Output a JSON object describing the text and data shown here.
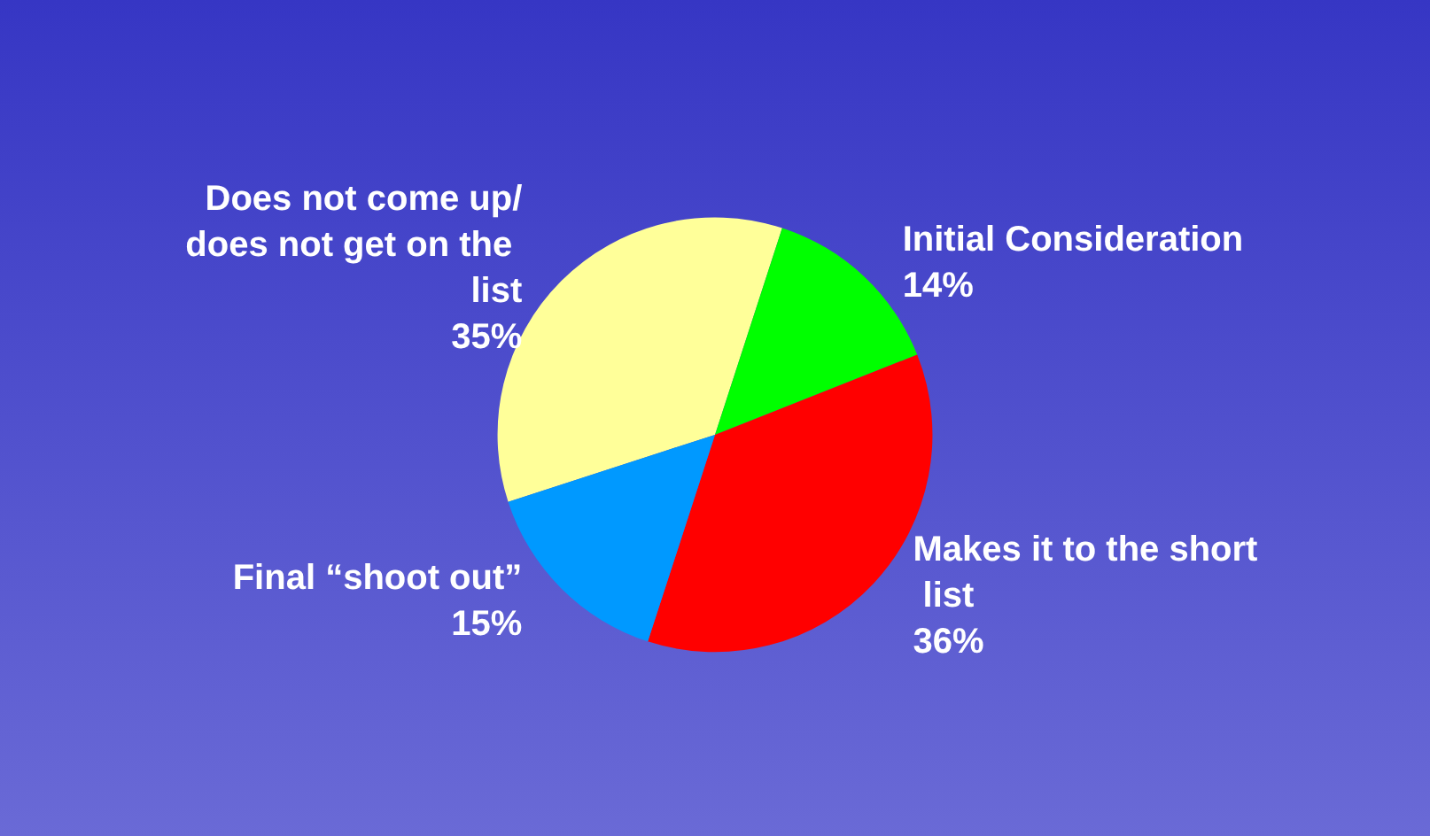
{
  "chart_data": {
    "type": "pie",
    "categories": [
      "Does not come up/does not get on the list",
      "Initial Consideration",
      "Makes it to the short list",
      "Final “shoot out”"
    ],
    "values": [
      35,
      14,
      36,
      15
    ],
    "value_labels": [
      "35%",
      "14%",
      "36%",
      "15%"
    ],
    "colors": [
      "#ffff99",
      "#00ff00",
      "#ff0000",
      "#0099ff"
    ],
    "legend": false
  }
}
